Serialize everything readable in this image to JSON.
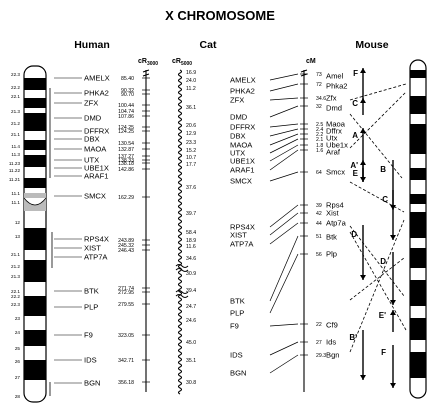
{
  "title": "X CHROMOSOME",
  "headers": {
    "human": "Human",
    "cat": "Cat",
    "mouse": "Mouse",
    "cr3000_main": "cR",
    "cr3000_sub": "3000",
    "cr5000_main": "cR",
    "cr5000_sub": "5000",
    "cm": "cM"
  },
  "human_bands": [
    "22.3",
    "22.2",
    "22.1",
    "21.3",
    "21.2",
    "21.1",
    "11.4",
    "11.3",
    "11.23",
    "11.22",
    "11.21",
    "11.1",
    "11.1",
    "12",
    "13",
    "21.1",
    "21.2",
    "21.3",
    "22.1",
    "22.2",
    "22.3",
    "23",
    "24",
    "25",
    "26",
    "27",
    "28"
  ],
  "human_genes": [
    "AMELX",
    "PHKA2",
    "ZFX",
    "DMD",
    "DFFRX",
    "DBX",
    "MAOA",
    "UTX",
    "UBE1X",
    "ARAF1",
    "SMCX",
    "RPS4X",
    "XIST",
    "ATP7A",
    "BTK",
    "PLP",
    "F9",
    "IDS",
    "BGN"
  ],
  "cr3000_values": [
    "85.40",
    "90.32",
    "90.70",
    "100.44",
    "104.74",
    "107.86",
    "124.25",
    "124.25",
    "130.54",
    "132.87",
    "137.27",
    "138.33",
    "138.18",
    "142.86",
    "162.29",
    "243.89",
    "245.32",
    "246.43",
    "271.74",
    "272.95",
    "279.55",
    "323.05",
    "342.71",
    "356.18"
  ],
  "cr5000_values": [
    "16.9",
    "24.0",
    "11.2",
    "36.1",
    "20.6",
    "12.9",
    "23.3",
    "15.2",
    "10.7",
    "17.7",
    "37.6",
    "39.7",
    "58.4",
    "18.9",
    "11.6",
    "34.6",
    "30.9",
    "39.4",
    "24.7",
    "24.6",
    "45.0",
    "35.1",
    "30.8"
  ],
  "cat_genes": [
    "AMELX",
    "PHKA2",
    "ZFX",
    "DMD",
    "DFFRX",
    "DBX",
    "MAOA",
    "UTX",
    "UBE1X",
    "ARAF1",
    "SMCX",
    "RPS4X",
    "XIST",
    "ATP7A",
    "BTK",
    "PLP",
    "F9",
    "IDS",
    "BGN"
  ],
  "cm_values": [
    "73",
    "72",
    "34.6",
    "32",
    "2.5",
    "2.4",
    "2.2",
    "2.1",
    "1.8",
    "1.6",
    "64",
    "39",
    "42",
    "44",
    "51",
    "56",
    "22",
    "27",
    "29.3"
  ],
  "mouse_genes": [
    "Amel",
    "Phka2",
    "Zfx",
    "Dmd",
    "Maoa",
    "Dffrx",
    "Utx",
    "Ube1x",
    "Araf",
    "Smcx",
    "Rps4",
    "Xist",
    "Atp7a",
    "Btk",
    "Plp",
    "Cf9",
    "Ids",
    "Bgn"
  ],
  "blocks": [
    "F",
    "C",
    "A",
    "A'",
    "E",
    "B",
    "C",
    "D",
    "D",
    "E'",
    "B'",
    "F"
  ]
}
